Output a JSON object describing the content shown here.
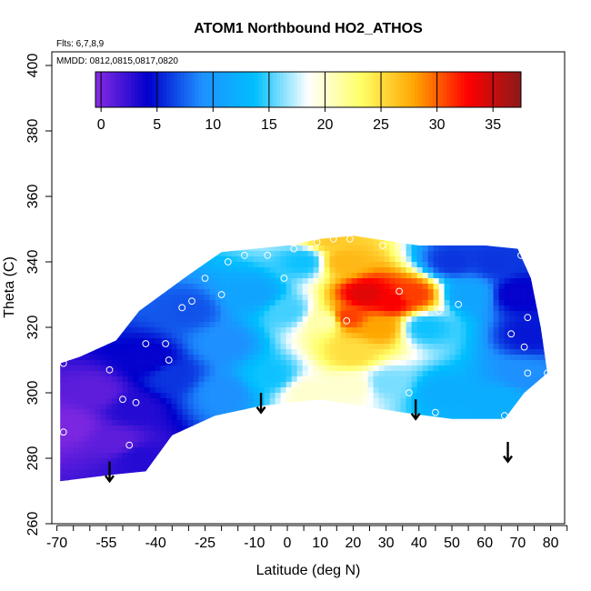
{
  "chart_data": {
    "type": "heatmap",
    "title": "ATOM1 Northbound HO2_ATHOS",
    "flights_note": "Flts: 6,7,8,9",
    "dates_note": "MMDD: 0812,0815,0817,0820",
    "xlabel": "Latitude (deg N)",
    "ylabel": "Theta (C)",
    "xlim": [
      -70,
      85
    ],
    "ylim": [
      260,
      400
    ],
    "x_tick_labels": [
      "-70",
      "-55",
      "-40",
      "-25",
      "-10",
      "0",
      "10",
      "20",
      "30",
      "40",
      "50",
      "60",
      "70",
      "80"
    ],
    "y_tick_labels": [
      "260",
      "280",
      "300",
      "320",
      "340",
      "360",
      "380",
      "400"
    ],
    "colorbar": {
      "min": -0.5,
      "max": 37.5,
      "tick_labels": [
        "0",
        "5",
        "10",
        "15",
        "20",
        "25",
        "30",
        "35"
      ],
      "colors": [
        "#8A2BE2",
        "#0000CD",
        "#1E90FF",
        "#00BFFF",
        "#FFFFFF",
        "#FFFF66",
        "#FFA500",
        "#FF0000",
        "#8B1A1A"
      ]
    },
    "data_region": {
      "top": [
        [
          -52,
          316
        ],
        [
          -45,
          325
        ],
        [
          -30,
          336
        ],
        [
          -20,
          343
        ],
        [
          -10,
          344
        ],
        [
          0,
          345
        ],
        [
          10,
          347
        ],
        [
          20,
          348
        ],
        [
          40,
          345
        ],
        [
          60,
          345
        ],
        [
          70,
          344
        ],
        [
          74,
          335
        ],
        [
          77,
          320
        ],
        [
          79,
          306
        ],
        [
          72,
          300
        ],
        [
          66,
          292
        ]
      ],
      "bottom": [
        [
          -69,
          273
        ],
        [
          -53,
          275
        ],
        [
          -43,
          276
        ],
        [
          -35,
          287
        ],
        [
          -22,
          293
        ],
        [
          -8,
          296
        ],
        [
          10,
          298
        ],
        [
          35,
          294
        ],
        [
          50,
          292
        ],
        [
          66,
          292
        ]
      ],
      "left_edge": [
        [
          -69,
          273
        ],
        [
          -69,
          309
        ],
        [
          -63,
          311
        ],
        [
          -52,
          316
        ]
      ]
    },
    "field_sources": [
      {
        "x": 24,
        "y": 330,
        "value": 34
      },
      {
        "x": 32,
        "y": 328,
        "value": 33
      },
      {
        "x": 38,
        "y": 330,
        "value": 31
      },
      {
        "x": 18,
        "y": 323,
        "value": 31
      },
      {
        "x": 17,
        "y": 340,
        "value": 27
      },
      {
        "x": 13,
        "y": 347,
        "value": 26
      },
      {
        "x": 20,
        "y": 312,
        "value": 25
      },
      {
        "x": 28,
        "y": 320,
        "value": 28
      },
      {
        "x": 12,
        "y": 322,
        "value": 21
      },
      {
        "x": 6,
        "y": 300,
        "value": 20
      },
      {
        "x": 20,
        "y": 302,
        "value": 20
      },
      {
        "x": 30,
        "y": 303,
        "value": 16
      },
      {
        "x": 42,
        "y": 320,
        "value": 14
      },
      {
        "x": 47,
        "y": 300,
        "value": 12
      },
      {
        "x": 55,
        "y": 330,
        "value": 11
      },
      {
        "x": 63,
        "y": 340,
        "value": 6
      },
      {
        "x": 70,
        "y": 330,
        "value": 4
      },
      {
        "x": 74,
        "y": 318,
        "value": 5
      },
      {
        "x": 72,
        "y": 305,
        "value": 9
      },
      {
        "x": 66,
        "y": 298,
        "value": 12
      },
      {
        "x": 0,
        "y": 325,
        "value": 15
      },
      {
        "x": -10,
        "y": 330,
        "value": 11
      },
      {
        "x": -5,
        "y": 305,
        "value": 14
      },
      {
        "x": -20,
        "y": 315,
        "value": 9
      },
      {
        "x": -20,
        "y": 300,
        "value": 9
      },
      {
        "x": -30,
        "y": 325,
        "value": 7
      },
      {
        "x": -35,
        "y": 305,
        "value": 6
      },
      {
        "x": -42,
        "y": 310,
        "value": 4
      },
      {
        "x": -47,
        "y": 295,
        "value": 3
      },
      {
        "x": -52,
        "y": 285,
        "value": 1
      },
      {
        "x": -58,
        "y": 300,
        "value": 1
      },
      {
        "x": -66,
        "y": 290,
        "value": 0
      },
      {
        "x": -45,
        "y": 280,
        "value": 3
      },
      {
        "x": 50,
        "y": 340,
        "value": 6
      },
      {
        "x": 5,
        "y": 340,
        "value": 14
      }
    ],
    "sample_points": [
      [
        -68,
        309
      ],
      [
        -54,
        307
      ],
      [
        -50,
        298
      ],
      [
        -46,
        297
      ],
      [
        -48,
        284
      ],
      [
        -68,
        288
      ],
      [
        -43,
        315
      ],
      [
        -37,
        315
      ],
      [
        -36,
        310
      ],
      [
        -32,
        326
      ],
      [
        -29,
        328
      ],
      [
        -25,
        335
      ],
      [
        -20,
        330
      ],
      [
        -18,
        340
      ],
      [
        -13,
        342
      ],
      [
        -6,
        342
      ],
      [
        -1,
        335
      ],
      [
        2,
        344
      ],
      [
        9,
        346
      ],
      [
        14,
        347
      ],
      [
        18,
        322
      ],
      [
        19,
        347
      ],
      [
        29,
        345
      ],
      [
        34,
        331
      ],
      [
        45,
        294
      ],
      [
        46,
        325
      ],
      [
        52,
        327
      ],
      [
        66,
        293
      ],
      [
        68,
        318
      ],
      [
        71,
        342
      ],
      [
        72,
        314
      ],
      [
        73,
        306
      ],
      [
        73,
        323
      ],
      [
        79,
        306
      ],
      [
        37,
        300
      ]
    ],
    "arrows": [
      {
        "x": -54,
        "y_top": 279,
        "y_tip": 273
      },
      {
        "x": -8,
        "y_top": 300,
        "y_tip": 294
      },
      {
        "x": 39,
        "y_top": 298,
        "y_tip": 292
      },
      {
        "x": 67,
        "y_top": 285,
        "y_tip": 279
      }
    ]
  }
}
